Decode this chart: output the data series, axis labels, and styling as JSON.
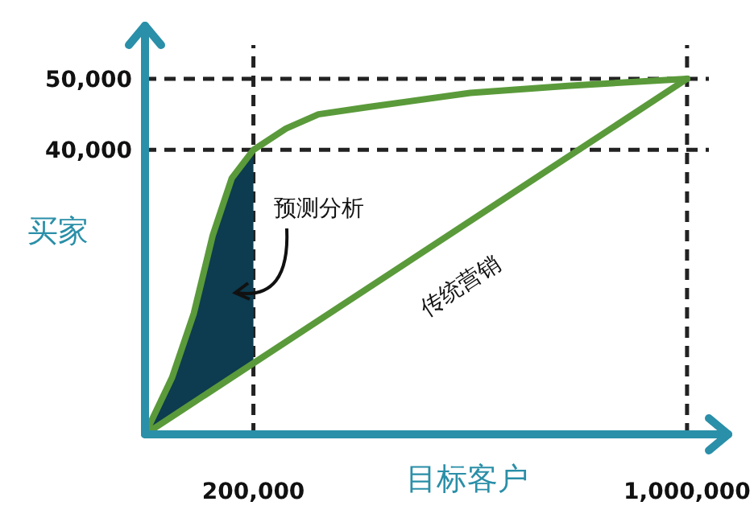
{
  "chart_data": {
    "type": "line",
    "xlabel": "目标客户",
    "ylabel": "买家",
    "xlim": [
      0,
      1070000
    ],
    "ylim": [
      0,
      57000
    ],
    "xticks": [
      {
        "value": 200000,
        "label": "200,000"
      },
      {
        "value": 1000000,
        "label": "1,000,000"
      }
    ],
    "yticks": [
      {
        "value": 40000,
        "label": "40,000"
      },
      {
        "value": 50000,
        "label": "50,000"
      }
    ],
    "series": [
      {
        "color": "#5a9a3a",
        "x": [
          0,
          50000,
          90000,
          125000,
          160000,
          200000,
          260000,
          320000,
          410000,
          600000,
          780000,
          1000000
        ],
        "values": [
          0,
          8000,
          17000,
          28000,
          36000,
          40000,
          43000,
          45000,
          46000,
          48000,
          49000,
          50000
        ],
        "lower": [
          0,
          2500,
          4500,
          6250,
          8000,
          10000,
          null,
          null,
          null,
          null,
          null,
          null
        ],
        "upper": [
          0,
          8000,
          17000,
          28000,
          36000,
          40000,
          null,
          null,
          null,
          null,
          null,
          null
        ]
      },
      {
        "name": "传统营销",
        "color": "#5a9a3a",
        "x": [
          0,
          1000000
        ],
        "values": [
          0,
          50000
        ]
      }
    ],
    "ref_lines": [
      {
        "axis": "x",
        "value": 200000,
        "color": "#222222",
        "line_style": "dashed"
      },
      {
        "axis": "x",
        "value": 1000000,
        "color": "#222222",
        "line_style": "dashed"
      },
      {
        "axis": "y",
        "value": 40000,
        "color": "#222222",
        "line_style": "dashed"
      },
      {
        "axis": "y",
        "value": 50000,
        "color": "#222222",
        "line_style": "dashed"
      }
    ],
    "annotations": [
      "预测分析"
    ],
    "marker": "none",
    "line_style": "solid"
  }
}
